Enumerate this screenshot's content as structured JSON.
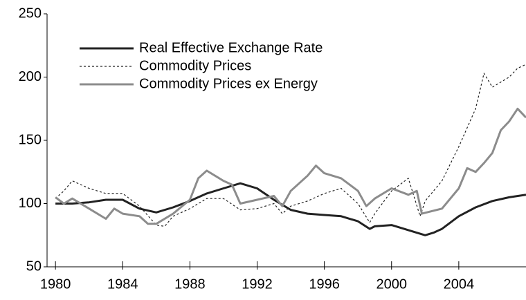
{
  "chart_data": {
    "type": "line",
    "xlim": [
      1979.5,
      2008
    ],
    "xticks": [
      1980,
      1984,
      1988,
      1992,
      1996,
      2000,
      2004
    ],
    "ylim": [
      50,
      250
    ],
    "yticks": [
      50,
      100,
      150,
      200,
      250
    ],
    "legend": "top-left",
    "series": [
      {
        "name": "Real Effective Exchange Rate",
        "color": "#222222",
        "style": "solid",
        "x": [
          1980,
          1981,
          1982,
          1983,
          1984,
          1985,
          1986,
          1987,
          1988,
          1989,
          1990,
          1991,
          1992,
          1993,
          1994,
          1995,
          1996,
          1997,
          1998,
          1998.7,
          1999,
          2000,
          2001,
          2002,
          2002.5,
          2003,
          2004,
          2005,
          2006,
          2007,
          2008
        ],
        "values": [
          100,
          100,
          101,
          103,
          103,
          96,
          93,
          97,
          102,
          108,
          112,
          116,
          112,
          103,
          95,
          92,
          91,
          90,
          86,
          80,
          82,
          83,
          79,
          75,
          77,
          80,
          90,
          97,
          102,
          105,
          107
        ]
      },
      {
        "name": "Commodity Prices",
        "color": "#222222",
        "style": "dotted",
        "x": [
          1980,
          1980.5,
          1981,
          1982,
          1983,
          1984,
          1985,
          1986,
          1986.5,
          1987,
          1988,
          1989,
          1990,
          1991,
          1992,
          1993,
          1993.5,
          1994,
          1995,
          1996,
          1997,
          1998,
          1998.7,
          1999,
          2000,
          2001,
          2001.7,
          2002,
          2003,
          2004,
          2005,
          2005.5,
          2006,
          2007,
          2007.5,
          2008
        ],
        "values": [
          104,
          110,
          118,
          112,
          108,
          108,
          98,
          83,
          82,
          90,
          96,
          104,
          104,
          95,
          96,
          100,
          92,
          98,
          102,
          108,
          112,
          100,
          85,
          92,
          110,
          120,
          90,
          102,
          118,
          145,
          175,
          203,
          192,
          200,
          207,
          210
        ]
      },
      {
        "name": "Commodity Prices ex Energy",
        "color": "#8c8c8c",
        "style": "solid",
        "x": [
          1980,
          1980.5,
          1981,
          1982,
          1983,
          1983.5,
          1984,
          1985,
          1985.5,
          1986,
          1987,
          1988,
          1988.5,
          1989,
          1990,
          1990.5,
          1991,
          1992,
          1993,
          1993.5,
          1994,
          1995,
          1995.5,
          1996,
          1997,
          1998,
          1998.5,
          1999,
          2000,
          2001,
          2001.5,
          2001.8,
          2003,
          2004,
          2004.5,
          2005,
          2005.5,
          2006,
          2006.5,
          2007,
          2007.5,
          2008
        ],
        "values": [
          105,
          100,
          104,
          96,
          88,
          96,
          92,
          90,
          84,
          84,
          92,
          103,
          120,
          126,
          118,
          115,
          100,
          103,
          106,
          98,
          110,
          122,
          130,
          124,
          120,
          110,
          98,
          104,
          112,
          107,
          110,
          92,
          96,
          112,
          128,
          125,
          132,
          140,
          158,
          165,
          175,
          168
        ]
      }
    ]
  }
}
